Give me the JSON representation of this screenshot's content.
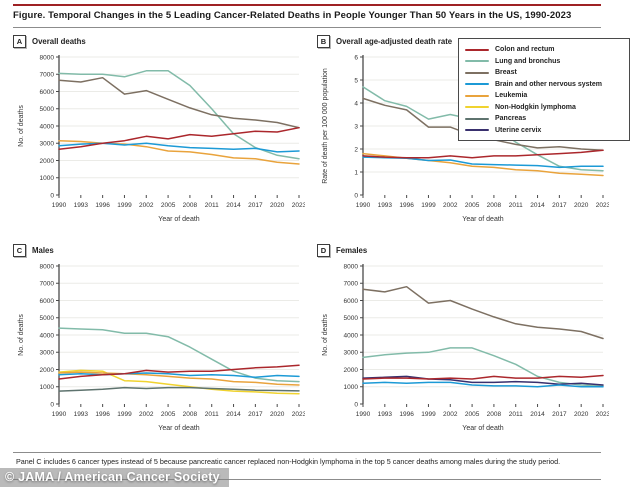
{
  "page": {
    "title": "Figure. Temporal Changes in the 5 Leading Cancer-Related Deaths in People Younger Than 50 Years in the US, 1990-2023",
    "footnote": "Panel C includes 6 cancer types instead of 5 because pancreatic cancer replaced non-Hodgkin lymphoma in the top 5 cancer deaths among males during the study period.",
    "watermark": "© JAMA / American Cancer Society",
    "accent_color": "#9e2124"
  },
  "legend": {
    "items": [
      {
        "label": "Colon and rectum",
        "color": "#ab272c"
      },
      {
        "label": "Lung and bronchus",
        "color": "#82bba9"
      },
      {
        "label": "Breast",
        "color": "#7d7062"
      },
      {
        "label": "Brain and other nervous system",
        "color": "#1c9ad6"
      },
      {
        "label": "Leukemia",
        "color": "#e9a33c"
      },
      {
        "label": "Non-Hodgkin lymphoma",
        "color": "#f0d32f"
      },
      {
        "label": "Pancreas",
        "color": "#5e736e"
      },
      {
        "label": "Uterine cervix",
        "color": "#39306e"
      }
    ]
  },
  "panels": [
    {
      "letter": "A",
      "title": "Overall deaths"
    },
    {
      "letter": "B",
      "title": "Overall age-adjusted death rate"
    },
    {
      "letter": "C",
      "title": "Males"
    },
    {
      "letter": "D",
      "title": "Females"
    }
  ],
  "chart_data": [
    {
      "type": "line",
      "panel": "A",
      "title": "Overall deaths",
      "xlabel": "Year of death",
      "ylabel": "No. of deaths",
      "x": [
        1990,
        1993,
        1996,
        1999,
        2002,
        2005,
        2008,
        2011,
        2014,
        2017,
        2020,
        2023
      ],
      "ylim": [
        0,
        8000
      ],
      "ytick_step": 1000,
      "grid": true,
      "series": [
        {
          "name": "Lung and bronchus",
          "values": [
            7050,
            7000,
            7000,
            6850,
            7200,
            7200,
            6350,
            5000,
            3550,
            2750,
            2300,
            2100
          ]
        },
        {
          "name": "Breast",
          "values": [
            6650,
            6550,
            6800,
            5850,
            6050,
            5550,
            5050,
            4650,
            4450,
            4350,
            4200,
            3900
          ]
        },
        {
          "name": "Leukemia",
          "values": [
            3150,
            3100,
            3000,
            2950,
            2800,
            2550,
            2500,
            2350,
            2150,
            2100,
            1900,
            1800
          ]
        },
        {
          "name": "Brain and other nervous system",
          "values": [
            2850,
            2950,
            3000,
            2900,
            3000,
            2850,
            2750,
            2700,
            2650,
            2700,
            2500,
            2550
          ]
        },
        {
          "name": "Colon and rectum",
          "values": [
            2650,
            2800,
            3000,
            3150,
            3400,
            3250,
            3500,
            3400,
            3550,
            3700,
            3650,
            3900
          ]
        }
      ]
    },
    {
      "type": "line",
      "panel": "B",
      "title": "Overall age-adjusted death rate",
      "xlabel": "Year of death",
      "ylabel": "Rate of death per 100 000 population",
      "x": [
        1990,
        1993,
        1996,
        1999,
        2002,
        2005,
        2008,
        2011,
        2014,
        2017,
        2020,
        2023
      ],
      "ylim": [
        0,
        6
      ],
      "ytick_step": 1,
      "grid": true,
      "series": [
        {
          "name": "Lung and bronchus",
          "values": [
            4.7,
            4.1,
            3.85,
            3.3,
            3.5,
            3.3,
            2.95,
            2.3,
            1.75,
            1.25,
            1.1,
            1.05
          ]
        },
        {
          "name": "Breast",
          "values": [
            4.2,
            3.9,
            3.7,
            2.95,
            2.95,
            2.6,
            2.4,
            2.2,
            2.05,
            2.1,
            2.0,
            1.95
          ]
        },
        {
          "name": "Leukemia",
          "values": [
            1.8,
            1.7,
            1.6,
            1.5,
            1.4,
            1.25,
            1.2,
            1.1,
            1.05,
            0.95,
            0.9,
            0.85
          ]
        },
        {
          "name": "Brain and other nervous system",
          "values": [
            1.65,
            1.62,
            1.6,
            1.5,
            1.52,
            1.35,
            1.32,
            1.3,
            1.28,
            1.2,
            1.25,
            1.25
          ]
        },
        {
          "name": "Colon and rectum",
          "values": [
            1.7,
            1.65,
            1.62,
            1.62,
            1.7,
            1.62,
            1.7,
            1.7,
            1.75,
            1.8,
            1.85,
            1.95
          ]
        }
      ]
    },
    {
      "type": "line",
      "panel": "C",
      "title": "Males",
      "xlabel": "Year of death",
      "ylabel": "No. of deaths",
      "x": [
        1990,
        1993,
        1996,
        1999,
        2002,
        2005,
        2008,
        2011,
        2014,
        2017,
        2020,
        2023
      ],
      "ylim": [
        0,
        8000
      ],
      "ytick_step": 1000,
      "grid": true,
      "series": [
        {
          "name": "Lung and bronchus",
          "values": [
            4400,
            4350,
            4300,
            4100,
            4100,
            3900,
            3300,
            2600,
            1900,
            1500,
            1350,
            1300
          ]
        },
        {
          "name": "Non-Hodgkin lymphoma",
          "values": [
            1850,
            1950,
            1900,
            1350,
            1300,
            1150,
            1000,
            850,
            750,
            700,
            620,
            600
          ]
        },
        {
          "name": "Leukemia",
          "values": [
            1800,
            1850,
            1800,
            1750,
            1700,
            1600,
            1500,
            1450,
            1300,
            1250,
            1150,
            1100
          ]
        },
        {
          "name": "Pancreas",
          "values": [
            750,
            800,
            850,
            950,
            900,
            950,
            950,
            900,
            850,
            800,
            780,
            760
          ]
        },
        {
          "name": "Brain and other nervous system",
          "values": [
            1700,
            1750,
            1700,
            1750,
            1800,
            1750,
            1650,
            1700,
            1650,
            1550,
            1650,
            1600
          ]
        },
        {
          "name": "Colon and rectum",
          "values": [
            1450,
            1600,
            1700,
            1750,
            1950,
            1850,
            1900,
            1900,
            2000,
            2100,
            2150,
            2250
          ]
        }
      ]
    },
    {
      "type": "line",
      "panel": "D",
      "title": "Females",
      "xlabel": "Year of death",
      "ylabel": "No. of deaths",
      "x": [
        1990,
        1993,
        1996,
        1999,
        2002,
        2005,
        2008,
        2011,
        2014,
        2017,
        2020,
        2023
      ],
      "ylim": [
        0,
        8000
      ],
      "ytick_step": 1000,
      "grid": true,
      "series": [
        {
          "name": "Breast",
          "values": [
            6650,
            6500,
            6800,
            5850,
            6000,
            5500,
            5050,
            4650,
            4450,
            4350,
            4200,
            3800
          ]
        },
        {
          "name": "Lung and bronchus",
          "values": [
            2700,
            2850,
            2950,
            3000,
            3250,
            3250,
            2800,
            2300,
            1600,
            1250,
            1100,
            1050
          ]
        },
        {
          "name": "Uterine cervix",
          "values": [
            1500,
            1550,
            1600,
            1450,
            1400,
            1250,
            1250,
            1300,
            1250,
            1150,
            1200,
            1100
          ]
        },
        {
          "name": "Brain and other nervous system",
          "values": [
            1200,
            1250,
            1200,
            1250,
            1250,
            1100,
            1050,
            1050,
            1000,
            1100,
            1000,
            1000
          ]
        },
        {
          "name": "Colon and rectum",
          "values": [
            1450,
            1500,
            1500,
            1450,
            1500,
            1450,
            1600,
            1500,
            1500,
            1600,
            1550,
            1650
          ]
        }
      ]
    }
  ]
}
